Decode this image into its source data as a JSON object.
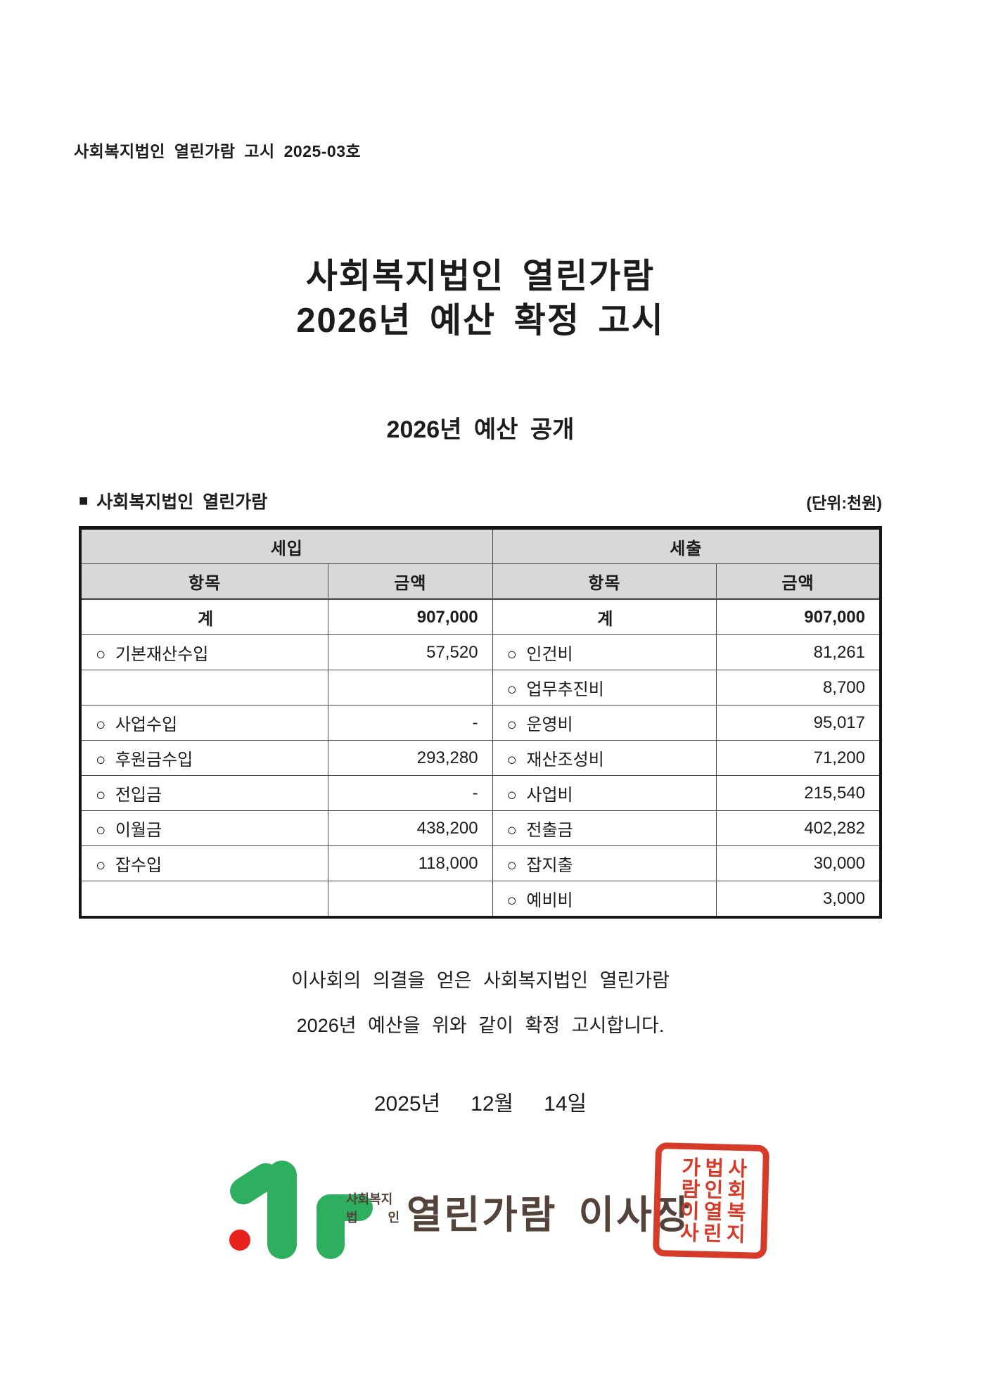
{
  "page": {
    "notice": "사회복지법인 열린가람 고시 2025-03호",
    "title_line1": "사회복지법인 열린가람",
    "title_line2": "2026년 예산 확정 고시",
    "subtitle": "2026년 예산 공개",
    "section": {
      "marker": "■",
      "label": "사회복지법인 열린가람",
      "unit_note": "(단위:천원)"
    },
    "budget_table": {
      "group_headers": [
        "세입",
        "세출"
      ],
      "column_headers": [
        "항목",
        "금액",
        "항목",
        "금액"
      ],
      "rows": [
        {
          "revenue_item": "계",
          "revenue_amount": "907,000",
          "expense_item": "계",
          "expense_amount": "907,000",
          "is_total": true
        },
        {
          "revenue_item": "○  기본재산수입",
          "revenue_amount": "57,520",
          "expense_item": "○  인건비",
          "expense_amount": "81,261",
          "is_total": false
        },
        {
          "revenue_item": "",
          "revenue_amount": "",
          "expense_item": "○  업무추진비",
          "expense_amount": "8,700",
          "is_total": false
        },
        {
          "revenue_item": "○  사업수입",
          "revenue_amount": "-",
          "expense_item": "○  운영비",
          "expense_amount": "95,017",
          "is_total": false
        },
        {
          "revenue_item": "○  후원금수입",
          "revenue_amount": "293,280",
          "expense_item": "○  재산조성비",
          "expense_amount": "71,200",
          "is_total": false
        },
        {
          "revenue_item": "○  전입금",
          "revenue_amount": "-",
          "expense_item": "○  사업비",
          "expense_amount": "215,540",
          "is_total": false
        },
        {
          "revenue_item": "○  이월금",
          "revenue_amount": "438,200",
          "expense_item": "○  전출금",
          "expense_amount": "402,282",
          "is_total": false
        },
        {
          "revenue_item": "○  잡수입",
          "revenue_amount": "118,000",
          "expense_item": "○  잡지출",
          "expense_amount": "30,000",
          "is_total": false
        },
        {
          "revenue_item": "",
          "revenue_amount": "",
          "expense_item": "○  예비비",
          "expense_amount": "3,000",
          "is_total": false
        }
      ]
    },
    "closing_line1": "이사회의 의결을 얻은 사회복지법인 열린가람",
    "closing_line2": "2026년 예산을 위와 같이 확정 고시합니다.",
    "date": "2025년   12월   14일",
    "signature": {
      "logo_small_line1": "사회복지",
      "logo_small_line2_left": "법",
      "logo_small_line2_right": "인",
      "issuer": "열린가람 이사장",
      "seal_columns": [
        "사회복지",
        "법인열린",
        "가람이사"
      ],
      "colors": {
        "logo_green": "#2eae5f",
        "logo_red": "#e8231d",
        "text_brown": "#54433a",
        "seal_red": "#d53b28"
      }
    }
  }
}
